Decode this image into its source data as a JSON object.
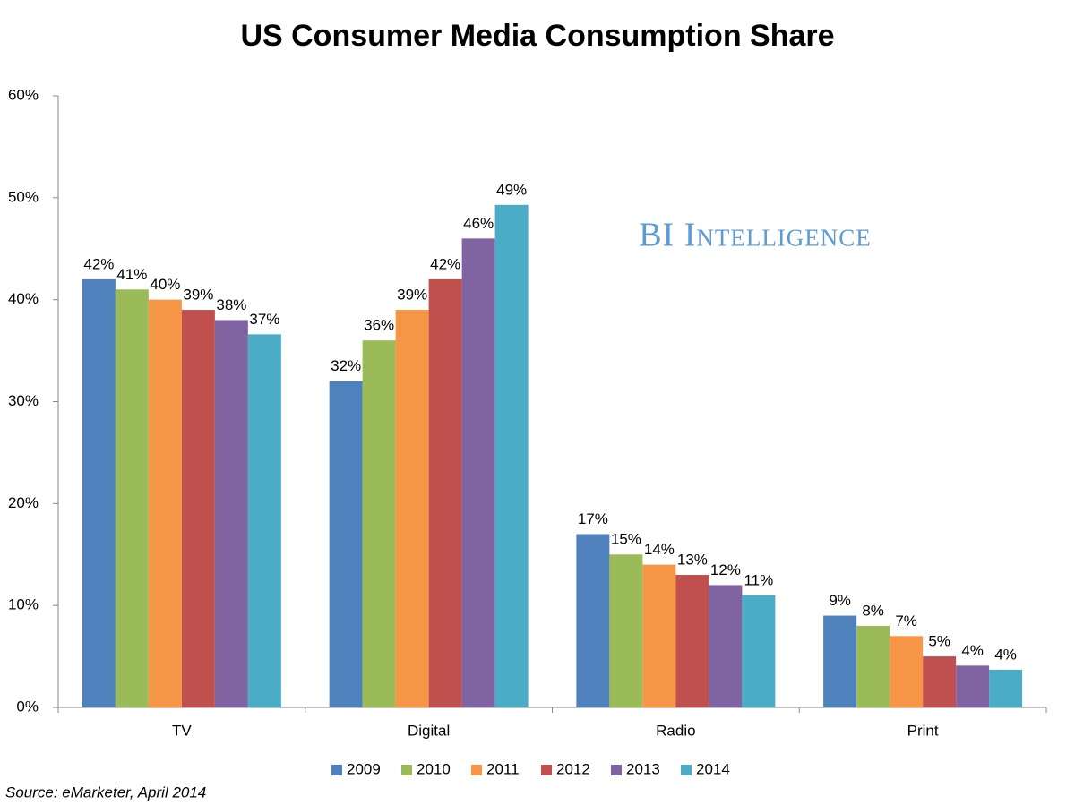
{
  "chart_data": {
    "type": "bar",
    "title": "US Consumer Media Consumption Share",
    "watermark": "BI Intelligence",
    "source": "Source: eMarketer, April 2014",
    "categories": [
      "TV",
      "Digital",
      "Radio",
      "Print"
    ],
    "series": [
      {
        "name": "2009",
        "color": "#4f81bd",
        "values": [
          42,
          32,
          17,
          9
        ],
        "value_labels": [
          "42%",
          "32%",
          "17%",
          "9%"
        ]
      },
      {
        "name": "2010",
        "color": "#9bbb59",
        "values": [
          41,
          36,
          15,
          8
        ],
        "value_labels": [
          "41%",
          "36%",
          "15%",
          "8%"
        ]
      },
      {
        "name": "2011",
        "color": "#f79646",
        "values": [
          40,
          39,
          14,
          7
        ],
        "value_labels": [
          "40%",
          "39%",
          "14%",
          "7%"
        ]
      },
      {
        "name": "2012",
        "color": "#c0504d",
        "values": [
          39,
          42,
          13,
          5
        ],
        "value_labels": [
          "39%",
          "42%",
          "13%",
          "5%"
        ]
      },
      {
        "name": "2013",
        "color": "#8064a2",
        "values": [
          38,
          46,
          12,
          4.1
        ],
        "value_labels": [
          "38%",
          "46%",
          "12%",
          "4%"
        ]
      },
      {
        "name": "2014",
        "color": "#4bacc6",
        "values": [
          36.6,
          49.3,
          11,
          3.7
        ],
        "value_labels": [
          "37%",
          "49%",
          "11%",
          "4%"
        ]
      }
    ],
    "ylim": [
      0,
      60
    ],
    "yticks": [
      {
        "value": 0,
        "label": "0%"
      },
      {
        "value": 10,
        "label": "10%"
      },
      {
        "value": 20,
        "label": "20%"
      },
      {
        "value": 30,
        "label": "30%"
      },
      {
        "value": 40,
        "label": "40%"
      },
      {
        "value": 50,
        "label": "50%"
      },
      {
        "value": 60,
        "label": "60%"
      }
    ],
    "legend": "bottom"
  }
}
